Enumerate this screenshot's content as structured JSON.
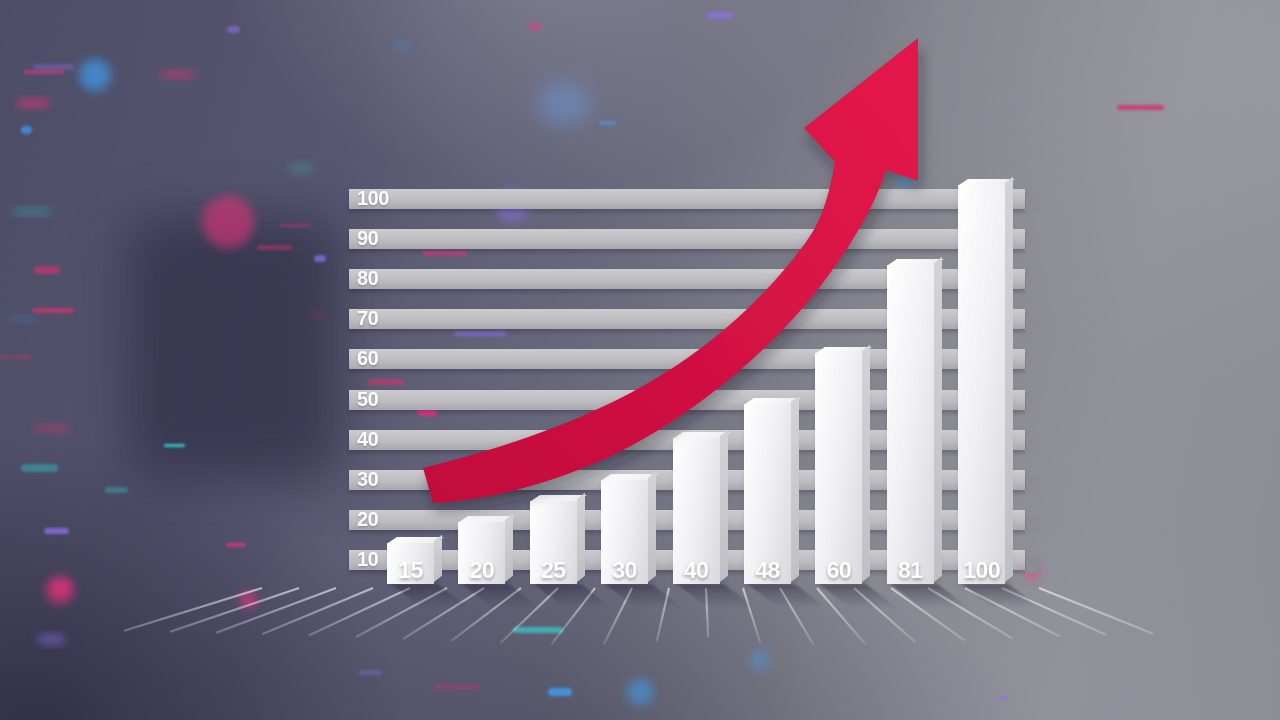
{
  "chart_data": {
    "type": "bar",
    "title": "",
    "xlabel": "",
    "ylabel": "",
    "categories": [
      "15",
      "20",
      "25",
      "30",
      "40",
      "48",
      "60",
      "81",
      "100"
    ],
    "values": [
      15,
      20,
      25,
      30,
      40,
      48,
      60,
      81,
      100
    ],
    "y_ticks": [
      100,
      90,
      80,
      70,
      60,
      50,
      40,
      30,
      20,
      10
    ],
    "ylim": [
      0,
      100
    ],
    "grid": "horizontal-gridline-bars",
    "legend_position": "none",
    "annotations": [
      {
        "type": "trend-arrow",
        "direction": "up-right",
        "color": "#d51140"
      }
    ]
  },
  "style": {
    "arrow_gradient_start": "#c10d3b",
    "arrow_gradient_end": "#e5164a",
    "bar_face_light": "#ffffff",
    "bar_face_dark": "#d9d9dd",
    "bar_side": "#c6c6cc",
    "gridline_light": "#cbcbce",
    "gridline_dark": "#a9a9ae",
    "gridline_cap": "#8c8c92",
    "tick_text_color": "#ffffff",
    "floor_line_color": "#ffffff",
    "bokeh_colors": [
      "#ff2e7e",
      "#3aa7ff",
      "#8e6fe8",
      "#2ee0d8",
      "#d6336c"
    ]
  }
}
